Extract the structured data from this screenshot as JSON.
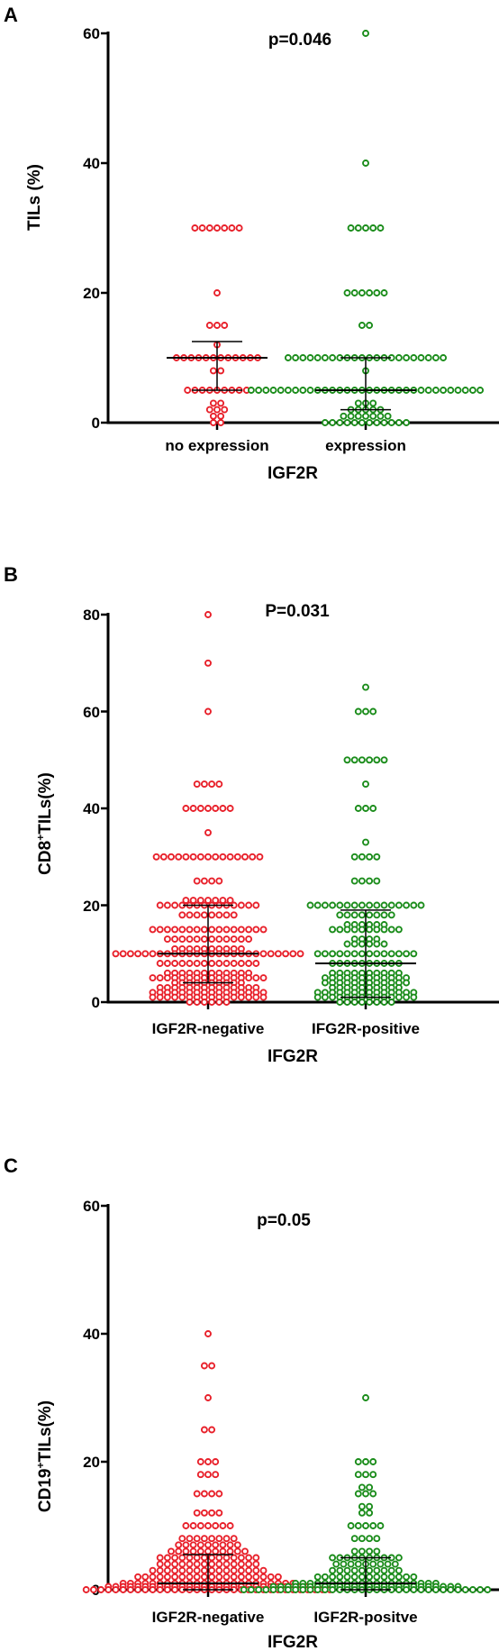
{
  "chart_data": [
    {
      "panel": "A",
      "type": "scatter",
      "annotation": "p=0.046",
      "ylabel": "TILs (%)",
      "xlabel": "IGF2R",
      "ylim": [
        0,
        60
      ],
      "yticks": [
        "0",
        "20",
        "40",
        "60"
      ],
      "categories": [
        "no expression",
        "expression"
      ],
      "series": [
        {
          "color": "#e8202a",
          "median": 10,
          "lower": 5,
          "upper": 12.5,
          "groups": [
            [
              30,
              7
            ],
            [
              20,
              1
            ],
            [
              15,
              3
            ],
            [
              12,
              1
            ],
            [
              10,
              12
            ],
            [
              8,
              2
            ],
            [
              5,
              9
            ],
            [
              3,
              2
            ],
            [
              2,
              3
            ],
            [
              1,
              2
            ],
            [
              0,
              2
            ]
          ]
        },
        {
          "color": "#1a8c1a",
          "median": 5,
          "lower": 2,
          "upper": 10,
          "groups": [
            [
              60,
              1
            ],
            [
              40,
              1
            ],
            [
              30,
              5
            ],
            [
              20,
              6
            ],
            [
              15,
              2
            ],
            [
              10,
              22
            ],
            [
              8,
              1
            ],
            [
              5,
              32
            ],
            [
              3,
              3
            ],
            [
              2,
              5
            ],
            [
              1,
              7
            ],
            [
              0,
              12
            ]
          ]
        }
      ]
    },
    {
      "panel": "B",
      "type": "scatter",
      "annotation": "P=0.031",
      "ylabel": "CD8",
      "ylabel_sup": "+",
      "ylabel_suffix": "TILs(%)",
      "xlabel": "IFG2R",
      "ylim": [
        0,
        80
      ],
      "yticks": [
        "0",
        "20",
        "40",
        "60",
        "80"
      ],
      "categories": [
        "IGF2R-negative",
        "IFG2R-positive"
      ],
      "series": [
        {
          "color": "#e8202a",
          "median": 10,
          "lower": 4,
          "upper": 20,
          "groups": [
            [
              80,
              1
            ],
            [
              70,
              1
            ],
            [
              60,
              1
            ],
            [
              45,
              4
            ],
            [
              40,
              7
            ],
            [
              35,
              1
            ],
            [
              30,
              15
            ],
            [
              25,
              4
            ],
            [
              21,
              7
            ],
            [
              20,
              14
            ],
            [
              18,
              8
            ],
            [
              15,
              16
            ],
            [
              13,
              12
            ],
            [
              11,
              10
            ],
            [
              10,
              26
            ],
            [
              8,
              14
            ],
            [
              6,
              12
            ],
            [
              5,
              16
            ],
            [
              4,
              10
            ],
            [
              3,
              14
            ],
            [
              2,
              16
            ],
            [
              1,
              16
            ],
            [
              0,
              6
            ]
          ]
        },
        {
          "color": "#1a8c1a",
          "median": 8,
          "lower": 1,
          "upper": 19,
          "groups": [
            [
              65,
              1
            ],
            [
              60,
              3
            ],
            [
              50,
              6
            ],
            [
              45,
              1
            ],
            [
              40,
              3
            ],
            [
              33,
              1
            ],
            [
              30,
              4
            ],
            [
              25,
              4
            ],
            [
              20,
              16
            ],
            [
              18,
              8
            ],
            [
              16,
              6
            ],
            [
              15,
              10
            ],
            [
              13,
              4
            ],
            [
              12,
              6
            ],
            [
              10,
              14
            ],
            [
              8,
              10
            ],
            [
              6,
              10
            ],
            [
              5,
              12
            ],
            [
              4,
              12
            ],
            [
              3,
              10
            ],
            [
              2,
              14
            ],
            [
              1,
              14
            ],
            [
              0,
              8
            ]
          ]
        }
      ]
    },
    {
      "panel": "C",
      "type": "scatter",
      "annotation": "p=0.05",
      "ylabel": "CD19",
      "ylabel_sup": "+",
      "ylabel_suffix": "TILs(%)",
      "xlabel": "IFG2R",
      "ylim": [
        0,
        60
      ],
      "yticks": [
        "0",
        "20",
        "40",
        "60"
      ],
      "categories": [
        "IGF2R-negative",
        "IGF2R-positve"
      ],
      "series": [
        {
          "color": "#e8202a",
          "median": 1,
          "lower": 0,
          "upper": 5.5,
          "groups": [
            [
              40,
              1
            ],
            [
              35,
              2
            ],
            [
              30,
              1
            ],
            [
              25,
              2
            ],
            [
              20,
              3
            ],
            [
              18,
              3
            ],
            [
              15,
              4
            ],
            [
              12,
              4
            ],
            [
              10,
              7
            ],
            [
              8,
              8
            ],
            [
              7,
              9
            ],
            [
              6,
              11
            ],
            [
              5,
              14
            ],
            [
              4,
              14
            ],
            [
              3,
              16
            ],
            [
              2,
              20
            ],
            [
              1,
              24
            ],
            [
              0.5,
              28
            ],
            [
              0,
              34
            ]
          ]
        },
        {
          "color": "#1a8c1a",
          "median": 1,
          "lower": 0,
          "upper": 5,
          "groups": [
            [
              30,
              1
            ],
            [
              20,
              3
            ],
            [
              18,
              3
            ],
            [
              16,
              2
            ],
            [
              15,
              3
            ],
            [
              13,
              2
            ],
            [
              12,
              2
            ],
            [
              10,
              5
            ],
            [
              8,
              4
            ],
            [
              6,
              4
            ],
            [
              5,
              10
            ],
            [
              4,
              9
            ],
            [
              3,
              10
            ],
            [
              2,
              14
            ],
            [
              1,
              20
            ],
            [
              0.5,
              26
            ],
            [
              0,
              34
            ]
          ]
        }
      ]
    }
  ]
}
